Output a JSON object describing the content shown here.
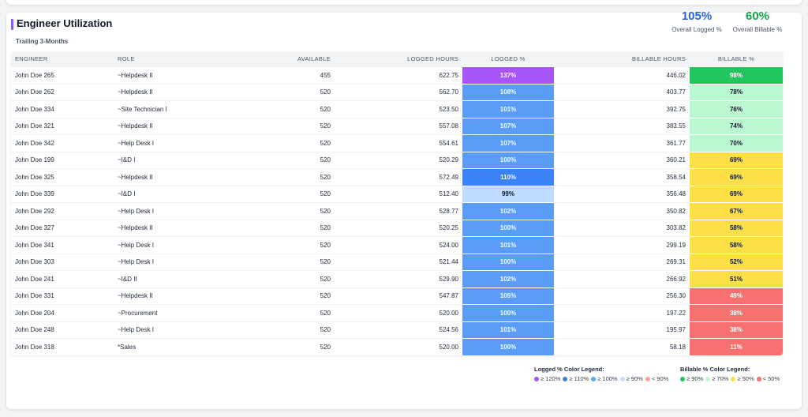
{
  "header": {
    "title": "Engineer Utilization",
    "subtitle": "Trailing 3-Months",
    "kpis": [
      {
        "value": "105%",
        "label": "Overall Logged %",
        "color": "#2563eb"
      },
      {
        "value": "60%",
        "label": "Overall Billable %",
        "color": "#16a34a"
      }
    ]
  },
  "table": {
    "columns": [
      "ENGINEER",
      "ROLE",
      "AVAILABLE",
      "LOGGED HOURS",
      "LOGGED %",
      "BILLABLE HOURS",
      "BILLABLE %"
    ],
    "rows": [
      {
        "engineer": "John Doe 265",
        "role": "~Helpdesk II",
        "available": "455",
        "logged_hours": "622.75",
        "logged_pct": "137%",
        "billable_hours": "446.02",
        "billable_pct": "98%"
      },
      {
        "engineer": "John Doe 262",
        "role": "~Helpdesk II",
        "available": "520",
        "logged_hours": "562.70",
        "logged_pct": "108%",
        "billable_hours": "403.77",
        "billable_pct": "78%"
      },
      {
        "engineer": "John Doe 334",
        "role": "~Site Technician I",
        "available": "520",
        "logged_hours": "523.50",
        "logged_pct": "101%",
        "billable_hours": "392.75",
        "billable_pct": "76%"
      },
      {
        "engineer": "John Doe 321",
        "role": "~Helpdesk II",
        "available": "520",
        "logged_hours": "557.08",
        "logged_pct": "107%",
        "billable_hours": "383.55",
        "billable_pct": "74%"
      },
      {
        "engineer": "John Doe 342",
        "role": "~Help Desk I",
        "available": "520",
        "logged_hours": "554.61",
        "logged_pct": "107%",
        "billable_hours": "361.77",
        "billable_pct": "70%"
      },
      {
        "engineer": "John Doe 199",
        "role": "~I&D I",
        "available": "520",
        "logged_hours": "520.29",
        "logged_pct": "100%",
        "billable_hours": "360.21",
        "billable_pct": "69%"
      },
      {
        "engineer": "John Doe 325",
        "role": "~Helpdesk II",
        "available": "520",
        "logged_hours": "572.49",
        "logged_pct": "110%",
        "billable_hours": "358.54",
        "billable_pct": "69%"
      },
      {
        "engineer": "John Doe 339",
        "role": "~I&D I",
        "available": "520",
        "logged_hours": "512.40",
        "logged_pct": "99%",
        "billable_hours": "356.48",
        "billable_pct": "69%"
      },
      {
        "engineer": "John Doe 292",
        "role": "~Help Desk I",
        "available": "520",
        "logged_hours": "528.77",
        "logged_pct": "102%",
        "billable_hours": "350.82",
        "billable_pct": "67%"
      },
      {
        "engineer": "John Doe 327",
        "role": "~Helpdesk II",
        "available": "520",
        "logged_hours": "520.25",
        "logged_pct": "100%",
        "billable_hours": "303.82",
        "billable_pct": "58%"
      },
      {
        "engineer": "John Doe 341",
        "role": "~Help Desk I",
        "available": "520",
        "logged_hours": "524.00",
        "logged_pct": "101%",
        "billable_hours": "299.19",
        "billable_pct": "58%"
      },
      {
        "engineer": "John Doe 303",
        "role": "~Help Desk I",
        "available": "520",
        "logged_hours": "521.44",
        "logged_pct": "100%",
        "billable_hours": "269.31",
        "billable_pct": "52%"
      },
      {
        "engineer": "John Doe 241",
        "role": "~I&D II",
        "available": "520",
        "logged_hours": "529.90",
        "logged_pct": "102%",
        "billable_hours": "266.92",
        "billable_pct": "51%"
      },
      {
        "engineer": "John Doe 331",
        "role": "~Helpdesk II",
        "available": "520",
        "logged_hours": "547.87",
        "logged_pct": "105%",
        "billable_hours": "256.30",
        "billable_pct": "49%"
      },
      {
        "engineer": "John Doe 204",
        "role": "~Procurement",
        "available": "520",
        "logged_hours": "520.00",
        "logged_pct": "100%",
        "billable_hours": "197.22",
        "billable_pct": "38%"
      },
      {
        "engineer": "John Doe 248",
        "role": "~Help Desk I",
        "available": "520",
        "logged_hours": "524.56",
        "logged_pct": "101%",
        "billable_hours": "195.97",
        "billable_pct": "38%"
      },
      {
        "engineer": "John Doe 318",
        "role": "*Sales",
        "available": "520",
        "logged_hours": "520.00",
        "logged_pct": "100%",
        "billable_hours": "58.18",
        "billable_pct": "11%"
      }
    ]
  },
  "legends": {
    "logged": {
      "title": "Logged % Color Legend:",
      "items": [
        {
          "label": "≥ 120%",
          "color": "#a855f7"
        },
        {
          "label": "≥ 110%",
          "color": "#3b82f6"
        },
        {
          "label": "≥ 100%",
          "color": "#60a5fa"
        },
        {
          "label": "≥ 90%",
          "color": "#bfdbfe"
        },
        {
          "label": "< 90%",
          "color": "#fca5a5"
        }
      ]
    },
    "billable": {
      "title": "Billable % Color Legend:",
      "items": [
        {
          "label": "≥ 90%",
          "color": "#22c55e"
        },
        {
          "label": "≥ 70%",
          "color": "#bbf7d0"
        },
        {
          "label": "≥ 50%",
          "color": "#fde047"
        },
        {
          "label": "< 50%",
          "color": "#f87171"
        }
      ]
    }
  },
  "colors": {
    "logged_120": "#a855f7",
    "logged_110": "#3b82f6",
    "logged_100": "#5b9cf7",
    "logged_90": "#bfdbfe",
    "logged_low": "#fca5a5",
    "billable_90": "#22c55e",
    "billable_70": "#bbf7d0",
    "billable_50": "#fde047",
    "billable_low": "#f87171"
  }
}
